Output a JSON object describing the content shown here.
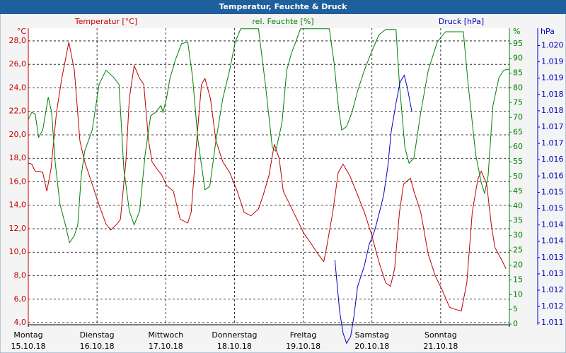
{
  "chart_data": {
    "type": "line",
    "title": "Temperatur, Feuchte & Druck",
    "xlim": [
      0,
      7
    ],
    "xticks": [
      {
        "value": 0,
        "label": "Montag"
      },
      {
        "value": 1,
        "label": "Dienstag"
      },
      {
        "value": 2,
        "label": "Mittwoch"
      },
      {
        "value": 3,
        "label": "Donnerstag"
      },
      {
        "value": 4,
        "label": "Freitag"
      },
      {
        "value": 5,
        "label": "Samstag"
      },
      {
        "value": 6,
        "label": "Sonntag"
      },
      7
    ],
    "xtick_dates": [
      "15.10.18",
      "16.10.18",
      "17.10.18",
      "18.10.18",
      "19.10.18",
      "20.10.18",
      "21.10.18"
    ],
    "ylabel": "Temperatur [°C]",
    "yunit": "°C",
    "ylim": [
      3.82,
      29.08
    ],
    "yticks": [
      {
        "value": 4,
        "label": "4,0"
      },
      {
        "value": 6,
        "label": "6,0"
      },
      {
        "value": 8,
        "label": "8,0"
      },
      {
        "value": 10,
        "label": "10,0"
      },
      {
        "value": 12,
        "label": "12,0"
      },
      {
        "value": 14,
        "label": "14,0"
      },
      {
        "value": 16,
        "label": "16,0"
      },
      {
        "value": 18,
        "label": "18,0"
      },
      {
        "value": 20,
        "label": "20,0"
      },
      {
        "value": 22,
        "label": "22,0"
      },
      {
        "value": 24,
        "label": "24,0"
      },
      {
        "value": 26,
        "label": "26,0"
      },
      {
        "value": 28,
        "label": "28,0"
      }
    ],
    "y2label": "rel. Feuchte [%]",
    "y2unit": "%",
    "y2lim": [
      -0.2,
      100.2
    ],
    "y2ticks": [
      0,
      5,
      10,
      15,
      20,
      25,
      30,
      35,
      40,
      45,
      50,
      55,
      60,
      65,
      70,
      75,
      80,
      85,
      90,
      95
    ],
    "y3label": "Druck [hPa]",
    "y3unit": "hPa",
    "y3lim": [
      1.01094,
      1.02003
    ],
    "y3ticks": [
      {
        "value": 1.011,
        "label": "1.011"
      },
      {
        "value": 1.0115,
        "label": "1.012"
      },
      {
        "value": 1.012,
        "label": "1.012"
      },
      {
        "value": 1.0125,
        "label": "1.013"
      },
      {
        "value": 1.013,
        "label": "1.013"
      },
      {
        "value": 1.0135,
        "label": "1.014"
      },
      {
        "value": 1.014,
        "label": "1.014"
      },
      {
        "value": 1.0145,
        "label": "1.015"
      },
      {
        "value": 1.015,
        "label": "1.015"
      },
      {
        "value": 1.0155,
        "label": "1.016"
      },
      {
        "value": 1.016,
        "label": "1.016"
      },
      {
        "value": 1.0165,
        "label": "1.017"
      },
      {
        "value": 1.017,
        "label": "1.017"
      },
      {
        "value": 1.0175,
        "label": "1.018"
      },
      {
        "value": 1.018,
        "label": "1.018"
      },
      {
        "value": 1.0185,
        "label": "1.019"
      },
      {
        "value": 1.019,
        "label": "1.019"
      },
      {
        "value": 1.0195,
        "label": "1.020"
      }
    ],
    "grid": true,
    "series": [
      {
        "name": "Temperatur",
        "color": "#c00000",
        "axis": "y",
        "x": [
          0.0,
          0.05,
          0.1,
          0.15,
          0.21,
          0.27,
          0.33,
          0.41,
          0.49,
          0.59,
          0.67,
          0.75,
          0.82,
          0.93,
          1.03,
          1.13,
          1.2,
          1.29,
          1.34,
          1.42,
          1.47,
          1.54,
          1.62,
          1.68,
          1.75,
          1.8,
          1.87,
          1.94,
          2.01,
          2.11,
          2.21,
          2.32,
          2.37,
          2.45,
          2.52,
          2.57,
          2.65,
          2.73,
          2.83,
          2.93,
          3.04,
          3.14,
          3.24,
          3.35,
          3.42,
          3.5,
          3.58,
          3.65,
          3.71,
          3.81,
          3.91,
          4.01,
          4.12,
          4.22,
          4.3,
          4.34,
          4.43,
          4.51,
          4.58,
          4.68,
          4.79,
          4.89,
          4.99,
          5.1,
          5.2,
          5.27,
          5.33,
          5.4,
          5.46,
          5.56,
          5.61,
          5.71,
          5.82,
          5.92,
          6.02,
          6.13,
          6.23,
          6.3,
          6.38,
          6.46,
          6.54,
          6.59,
          6.67,
          6.74,
          6.79,
          6.9,
          6.95
        ],
        "values": [
          17.6,
          17.5,
          16.9,
          16.9,
          16.8,
          15.2,
          17.1,
          21.9,
          24.9,
          27.9,
          25.5,
          19.5,
          17.7,
          15.8,
          14.0,
          12.4,
          11.9,
          12.4,
          12.8,
          17.7,
          23.1,
          25.9,
          24.8,
          24.3,
          19.5,
          17.7,
          17.1,
          16.6,
          15.7,
          15.2,
          12.8,
          12.5,
          13.4,
          19.5,
          24.3,
          24.8,
          23.1,
          19.5,
          17.7,
          16.8,
          15.2,
          13.4,
          13.1,
          13.7,
          14.9,
          16.5,
          19.2,
          18.0,
          15.2,
          14.0,
          12.8,
          11.6,
          10.7,
          9.8,
          9.2,
          10.4,
          13.4,
          16.8,
          17.5,
          16.5,
          14.9,
          13.4,
          11.6,
          9.2,
          7.4,
          7.1,
          8.6,
          13.4,
          15.8,
          16.3,
          15.2,
          13.4,
          9.8,
          8.0,
          6.8,
          5.3,
          5.1,
          5.0,
          7.4,
          13.4,
          16.2,
          16.9,
          15.8,
          12.2,
          10.4,
          9.2,
          8.6
        ]
      },
      {
        "name": "rel. Feuchte",
        "color": "#008000",
        "axis": "y2",
        "x": [
          0.0,
          0.05,
          0.1,
          0.15,
          0.21,
          0.29,
          0.34,
          0.39,
          0.46,
          0.54,
          0.6,
          0.67,
          0.72,
          0.77,
          0.82,
          0.93,
          1.03,
          1.13,
          1.24,
          1.32,
          1.39,
          1.47,
          1.54,
          1.62,
          1.7,
          1.78,
          1.85,
          1.93,
          1.96,
          2.01,
          2.06,
          2.14,
          2.23,
          2.32,
          2.39,
          2.47,
          2.57,
          2.64,
          2.73,
          2.83,
          2.93,
          3.01,
          3.09,
          3.35,
          3.45,
          3.55,
          3.6,
          3.69,
          3.76,
          3.83,
          3.89,
          3.96,
          4.38,
          4.45,
          4.51,
          4.56,
          4.63,
          4.71,
          4.79,
          4.89,
          4.99,
          5.1,
          5.2,
          5.35,
          5.4,
          5.48,
          5.54,
          5.61,
          5.71,
          5.82,
          5.95,
          6.07,
          6.33,
          6.4,
          6.51,
          6.59,
          6.64,
          6.69,
          6.76,
          6.85,
          6.92,
          7.0
        ],
        "values": [
          69.3,
          71.7,
          71.2,
          63.3,
          65.7,
          76.9,
          71.7,
          55.0,
          40.7,
          33.6,
          27.6,
          30.0,
          33.6,
          50.2,
          58.6,
          65.7,
          81.2,
          86.0,
          83.6,
          81.2,
          52.6,
          38.3,
          33.6,
          38.3,
          57.4,
          70.5,
          71.7,
          74.0,
          71.7,
          76.4,
          83.1,
          89.5,
          95.0,
          95.5,
          83.6,
          62.1,
          45.5,
          46.7,
          62.1,
          76.4,
          86.0,
          95.5,
          100,
          100,
          81.2,
          59.8,
          58.6,
          68.1,
          86.0,
          91.9,
          95.5,
          100,
          100,
          88.3,
          74.0,
          65.7,
          66.9,
          71.7,
          78.8,
          86.0,
          91.9,
          97.9,
          99.8,
          99.8,
          81.2,
          59.8,
          54.5,
          56.2,
          71.7,
          86.0,
          95.5,
          99.0,
          99.0,
          81.2,
          57.4,
          47.9,
          44.3,
          50.2,
          74.0,
          83.6,
          86.0,
          86.4
        ]
      },
      {
        "name": "Druck",
        "color": "#0000c0",
        "axis": "y3",
        "x": [
          4.46,
          4.53,
          4.58,
          4.63,
          4.69,
          4.74,
          4.79,
          4.89,
          4.96,
          5.04,
          5.12,
          5.17,
          5.23,
          5.28,
          5.35,
          5.41,
          5.47,
          5.52,
          5.58
        ],
        "values": [
          1.01293,
          1.01134,
          1.01069,
          1.01037,
          1.01058,
          1.01123,
          1.0121,
          1.01275,
          1.0134,
          1.01383,
          1.01448,
          1.01491,
          1.01578,
          1.01686,
          1.01773,
          1.01838,
          1.01859,
          1.01816,
          1.01747
        ]
      }
    ]
  }
}
